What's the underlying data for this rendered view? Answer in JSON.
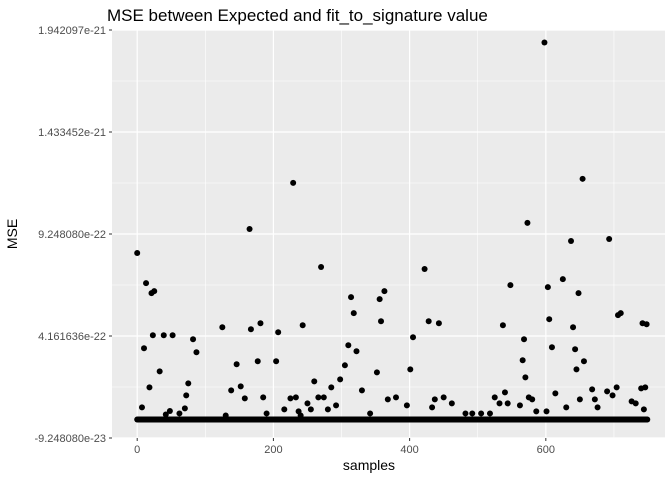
{
  "chart_data": {
    "type": "scatter",
    "title": "MSE between Expected and fit_to_signature value",
    "xlabel": "samples",
    "ylabel": "MSE",
    "xlim": [
      -37,
      775
    ],
    "ylim": [
      -9.24808e-23,
      1.942097e-21
    ],
    "x_ticks": [
      0,
      200,
      400,
      600
    ],
    "x_tick_labels": [
      "0",
      "200",
      "400",
      "600"
    ],
    "y_ticks": [
      -9.24808e-23,
      4.161636e-22,
      9.24808e-22,
      1.433452e-21,
      1.942097e-21
    ],
    "y_tick_labels": [
      "-9.248080e-23",
      "4.161636e-22",
      "9.248080e-22",
      "1.433452e-21",
      "1.942097e-21"
    ],
    "grid": true,
    "background": "#ebebeb",
    "point_color": "#000000",
    "baseline_value": 0,
    "sample_count": 750,
    "points": [
      [
        0,
        8.3e-22
      ],
      [
        7,
        6e-23
      ],
      [
        10,
        3.55e-22
      ],
      [
        13,
        6.8e-22
      ],
      [
        18,
        1.6e-22
      ],
      [
        21,
        6.3e-22
      ],
      [
        23,
        4.2e-22
      ],
      [
        25,
        6.4e-22
      ],
      [
        33,
        2.4e-22
      ],
      [
        39,
        4.2e-22
      ],
      [
        42,
        2.5e-23
      ],
      [
        48,
        4.2e-23
      ],
      [
        52,
        4.2e-22
      ],
      [
        62,
        3e-23
      ],
      [
        70,
        5.5e-23
      ],
      [
        72,
        1.2e-22
      ],
      [
        75,
        1.8e-22
      ],
      [
        82,
        4e-22
      ],
      [
        87,
        3.35e-22
      ],
      [
        125,
        4.6e-22
      ],
      [
        130,
        2e-23
      ],
      [
        138,
        1.45e-22
      ],
      [
        146,
        2.75e-22
      ],
      [
        152,
        1.65e-22
      ],
      [
        158,
        1.05e-22
      ],
      [
        165,
        9.5e-22
      ],
      [
        167,
        4.5e-22
      ],
      [
        177,
        2.9e-22
      ],
      [
        181,
        4.8e-22
      ],
      [
        185,
        1.1e-22
      ],
      [
        190,
        3e-23
      ],
      [
        204,
        2.9e-22
      ],
      [
        207,
        4.35e-22
      ],
      [
        216,
        5e-23
      ],
      [
        225,
        1.05e-22
      ],
      [
        229,
        1.18e-21
      ],
      [
        233,
        1.1e-22
      ],
      [
        237,
        4e-23
      ],
      [
        240,
        2e-23
      ],
      [
        243,
        4.7e-22
      ],
      [
        250,
        8e-23
      ],
      [
        255,
        5e-23
      ],
      [
        260,
        1.9e-22
      ],
      [
        266,
        1.1e-22
      ],
      [
        270,
        7.6e-22
      ],
      [
        274,
        1.1e-22
      ],
      [
        280,
        5e-23
      ],
      [
        285,
        1.6e-22
      ],
      [
        292,
        7e-23
      ],
      [
        298,
        2e-22
      ],
      [
        305,
        2.7e-22
      ],
      [
        310,
        3.7e-22
      ],
      [
        314,
        6.1e-22
      ],
      [
        318,
        5.3e-22
      ],
      [
        322,
        3.4e-22
      ],
      [
        330,
        1.45e-22
      ],
      [
        342,
        3e-23
      ],
      [
        352,
        2.35e-22
      ],
      [
        356,
        6e-22
      ],
      [
        358,
        4.9e-22
      ],
      [
        363,
        6.4e-22
      ],
      [
        368,
        1e-22
      ],
      [
        380,
        1.1e-22
      ],
      [
        396,
        7e-23
      ],
      [
        401,
        2.5e-22
      ],
      [
        405,
        4.1e-22
      ],
      [
        422,
        7.5e-22
      ],
      [
        428,
        4.9e-22
      ],
      [
        433,
        6e-23
      ],
      [
        437,
        1e-22
      ],
      [
        443,
        4.8e-22
      ],
      [
        450,
        1.1e-22
      ],
      [
        462,
        8e-23
      ],
      [
        482,
        3e-23
      ],
      [
        492,
        3e-23
      ],
      [
        505,
        3e-23
      ],
      [
        518,
        3e-23
      ],
      [
        525,
        1.1e-22
      ],
      [
        532,
        8e-23
      ],
      [
        537,
        4.7e-22
      ],
      [
        540,
        1.35e-22
      ],
      [
        544,
        8e-23
      ],
      [
        548,
        6.7e-22
      ],
      [
        562,
        7e-23
      ],
      [
        566,
        2.95e-22
      ],
      [
        568,
        4e-22
      ],
      [
        570,
        2.1e-22
      ],
      [
        573,
        9.8e-22
      ],
      [
        575,
        1.1e-22
      ],
      [
        580,
        1e-22
      ],
      [
        586,
        4e-23
      ],
      [
        598,
        1.88e-21
      ],
      [
        601,
        4e-23
      ],
      [
        603,
        6.6e-22
      ],
      [
        605,
        5e-22
      ],
      [
        609,
        3.6e-22
      ],
      [
        614,
        1.3e-22
      ],
      [
        625,
        7e-22
      ],
      [
        630,
        6e-23
      ],
      [
        637,
        8.9e-22
      ],
      [
        640,
        4.6e-22
      ],
      [
        643,
        3.5e-22
      ],
      [
        645,
        2.5e-22
      ],
      [
        648,
        6.3e-22
      ],
      [
        650,
        1e-22
      ],
      [
        654,
        1.2e-21
      ],
      [
        656,
        2.9e-22
      ],
      [
        668,
        1.5e-22
      ],
      [
        672,
        1e-22
      ],
      [
        676,
        6e-23
      ],
      [
        690,
        1.4e-22
      ],
      [
        693,
        9e-22
      ],
      [
        698,
        1.2e-22
      ],
      [
        704,
        1.6e-22
      ],
      [
        706,
        5.2e-22
      ],
      [
        710,
        5.3e-22
      ],
      [
        726,
        9e-23
      ],
      [
        732,
        8e-23
      ],
      [
        740,
        1.55e-22
      ],
      [
        742,
        4.8e-22
      ],
      [
        744,
        5e-23
      ],
      [
        746,
        1.6e-22
      ],
      [
        748,
        4.75e-22
      ]
    ]
  }
}
